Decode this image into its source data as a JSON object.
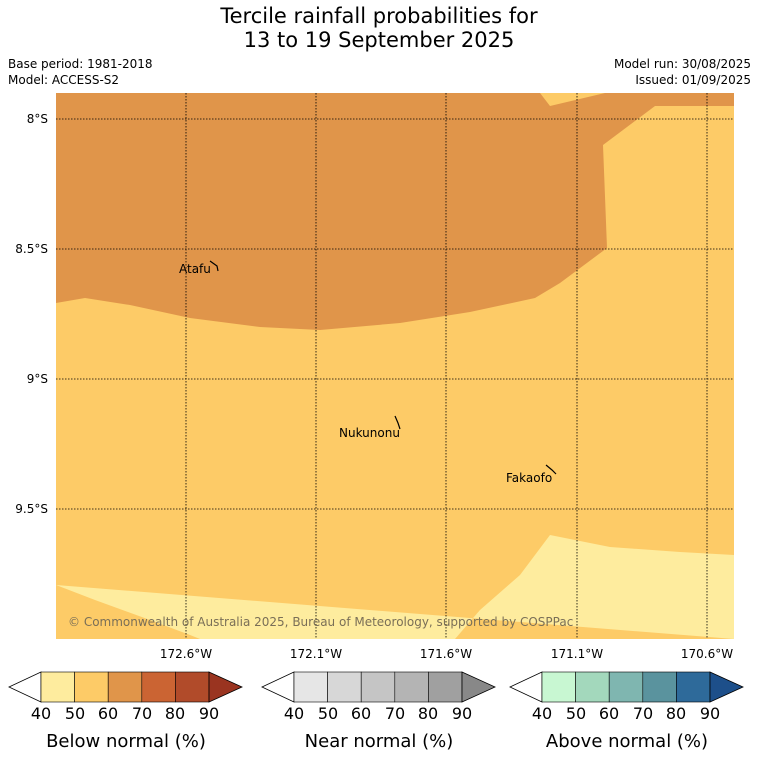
{
  "title_line1": "Tercile rainfall probabilities for",
  "title_line2": "13 to 19 September 2025",
  "base_period": "Base period: 1981-2018",
  "model": "Model: ACCESS-S2",
  "model_run": "Model run: 30/08/2025",
  "issued": "Issued: 01/09/2025",
  "map": {
    "lat_labels": [
      "8°S",
      "8.5°S",
      "9°S",
      "9.5°S"
    ],
    "lon_labels": [
      "172.6°W",
      "172.1°W",
      "171.6°W",
      "171.1°W",
      "170.6°W"
    ],
    "places": [
      "Atafu",
      "Nukunonu",
      "Fakaofo"
    ],
    "copyright": "© Commonwealth of Australia 2025, Bureau of Meteorology, supported by COSPPac",
    "colors": {
      "below_60_70": "#e0954a",
      "below_50_60": "#fdcb67",
      "below_40_50": "#feec9e"
    }
  },
  "colorbars": [
    {
      "label": "Below normal (%)",
      "ticks": [
        "40",
        "50",
        "60",
        "70",
        "80",
        "90"
      ],
      "colors": [
        "#ffffff",
        "#feec9e",
        "#fdcb67",
        "#e0954a",
        "#cb6433",
        "#b14b2a",
        "#9a3420"
      ]
    },
    {
      "label": "Near normal (%)",
      "ticks": [
        "40",
        "50",
        "60",
        "70",
        "80",
        "90"
      ],
      "colors": [
        "#ffffff",
        "#e6e6e6",
        "#d7d7d7",
        "#c5c5c5",
        "#b4b4b4",
        "#a0a0a0",
        "#888888"
      ]
    },
    {
      "label": "Above normal (%)",
      "ticks": [
        "40",
        "50",
        "60",
        "70",
        "80",
        "90"
      ],
      "colors": [
        "#ffffff",
        "#c8f7d2",
        "#a3d8bc",
        "#7fb6b0",
        "#5a939e",
        "#2e6a9a",
        "#1d4f8a"
      ]
    }
  ]
}
